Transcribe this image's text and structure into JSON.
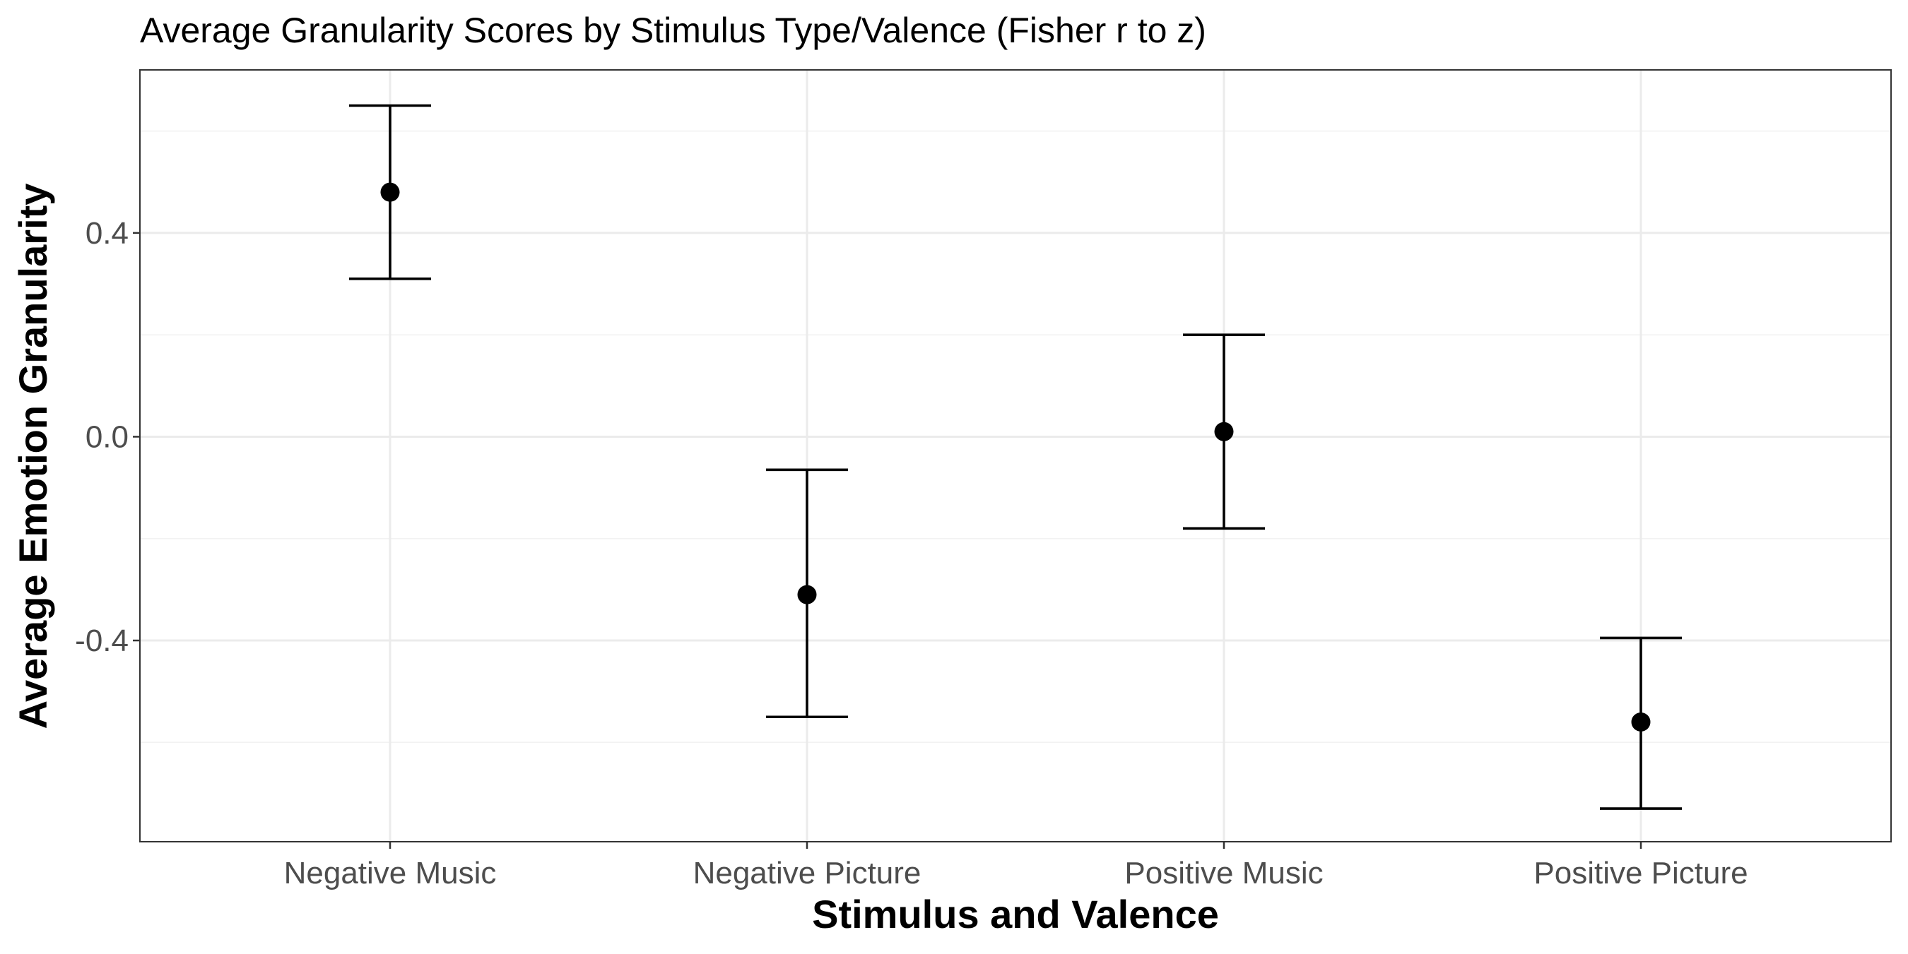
{
  "chart_data": {
    "type": "scatter",
    "title": "Average Granularity Scores by Stimulus Type/Valence (Fisher r to z)",
    "xlabel": "Stimulus and Valence",
    "ylabel": "Average Emotion Granularity",
    "categories": [
      "Negative Music",
      "Negative Picture",
      "Positive Music",
      "Positive Picture"
    ],
    "values": [
      0.48,
      -0.31,
      0.01,
      -0.56
    ],
    "error_low": [
      0.31,
      -0.55,
      -0.18,
      -0.73
    ],
    "error_high": [
      0.65,
      -0.065,
      0.2,
      -0.395
    ],
    "yticks": [
      -0.4,
      0.0,
      0.4
    ],
    "ytick_labels": [
      "-0.4",
      "0.0",
      "0.4"
    ],
    "ylim": [
      -0.795,
      0.72
    ],
    "grid": true,
    "colors": {
      "point": "#000000",
      "errorbar": "#000000",
      "grid": "#ebebeb",
      "border": "#333333"
    }
  }
}
